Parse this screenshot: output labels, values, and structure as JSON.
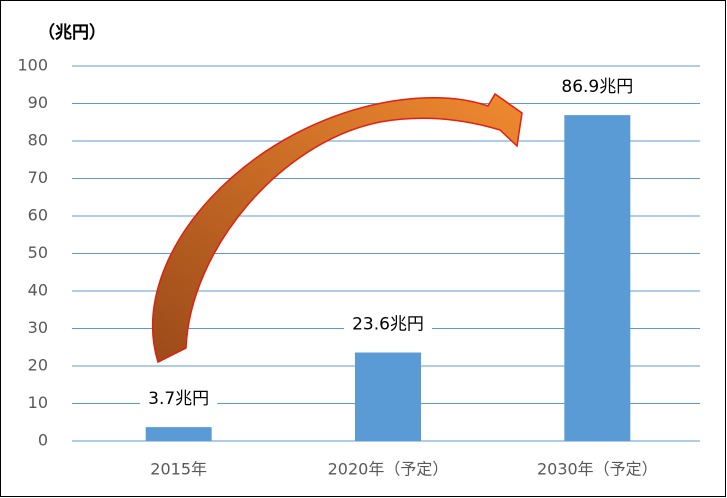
{
  "chart_data": {
    "type": "bar",
    "y_axis_label": "（兆円）",
    "categories": [
      "2015年",
      "2020年（予定）",
      "2030年（予定）"
    ],
    "values": [
      3.7,
      23.6,
      86.9
    ],
    "value_labels": [
      "3.7兆円",
      "23.6兆円",
      "86.9兆円"
    ],
    "color": "#5b9bd5",
    "ylim": [
      0,
      100
    ],
    "yticks": [
      0,
      10,
      20,
      30,
      40,
      50,
      60,
      70,
      80,
      90,
      100
    ],
    "grid": true
  }
}
